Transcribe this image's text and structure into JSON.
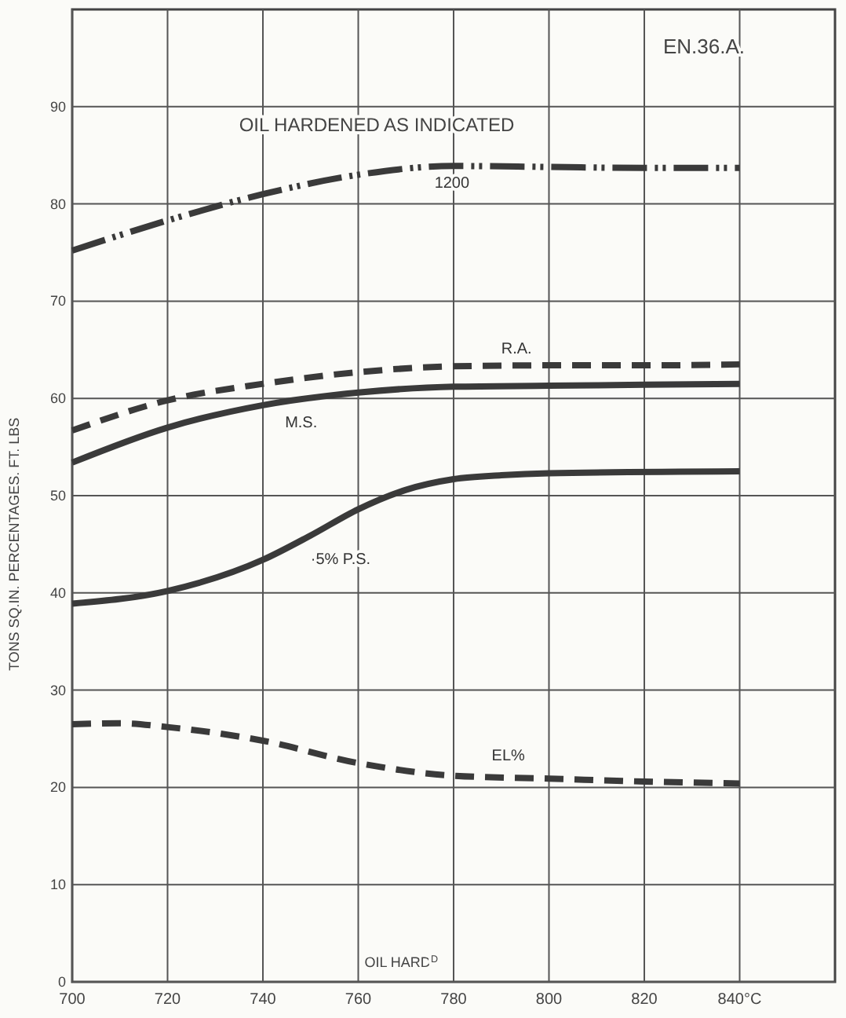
{
  "chart_data": {
    "type": "line",
    "title": "EN.36.A.",
    "subtitle": "OIL HARDENED AS INDICATED",
    "xlabel": "OIL HARD$^{D}$",
    "ylabel": "TONS SQ.IN.   PERCENTAGES.   FT. LBS",
    "x": [
      700,
      720,
      740,
      760,
      780,
      800,
      820,
      840
    ],
    "series": [
      {
        "name": "1200",
        "color": "#3a3a3a",
        "line_style": "dashdot",
        "values": [
          75.2,
          78.3,
          81,
          83,
          83.9,
          83.8,
          83.7,
          83.7
        ]
      },
      {
        "name": "R.A.",
        "color": "#3a3a3a",
        "line_style": "dashed",
        "values": [
          56.7,
          59.8,
          61.5,
          62.7,
          63.3,
          63.4,
          63.4,
          63.5
        ]
      },
      {
        "name": "M.S.",
        "color": "#3a3a3a",
        "line_style": "solid",
        "values": [
          53.4,
          57,
          59.3,
          60.6,
          61.2,
          61.3,
          61.4,
          61.5
        ]
      },
      {
        "name": "·5% P.S.",
        "color": "#3a3a3a",
        "line_style": "solid",
        "x": [
          700,
          720,
          740,
          750,
          760,
          770,
          780,
          790,
          800,
          840
        ],
        "values": [
          38.9,
          40.2,
          43.4,
          45.9,
          48.6,
          50.6,
          51.7,
          52.1,
          52.3,
          52.5
        ]
      },
      {
        "name": "EL%",
        "color": "#3a3a3a",
        "line_style": "dashed",
        "x": [
          700,
          710,
          720,
          740,
          760,
          780,
          800,
          820,
          840
        ],
        "values": [
          26.5,
          26.6,
          26.2,
          24.8,
          22.5,
          21.2,
          20.9,
          20.6,
          20.4
        ]
      }
    ],
    "xlim": [
      700,
      860
    ],
    "xticks": [
      700,
      720,
      740,
      760,
      780,
      800,
      820,
      {
        "value": 840,
        "label": "840°C"
      }
    ],
    "ylim": [
      0,
      100
    ],
    "yticks": [
      0,
      10,
      20,
      30,
      40,
      50,
      60,
      70,
      80,
      90
    ],
    "grid": true,
    "marker": "none"
  }
}
